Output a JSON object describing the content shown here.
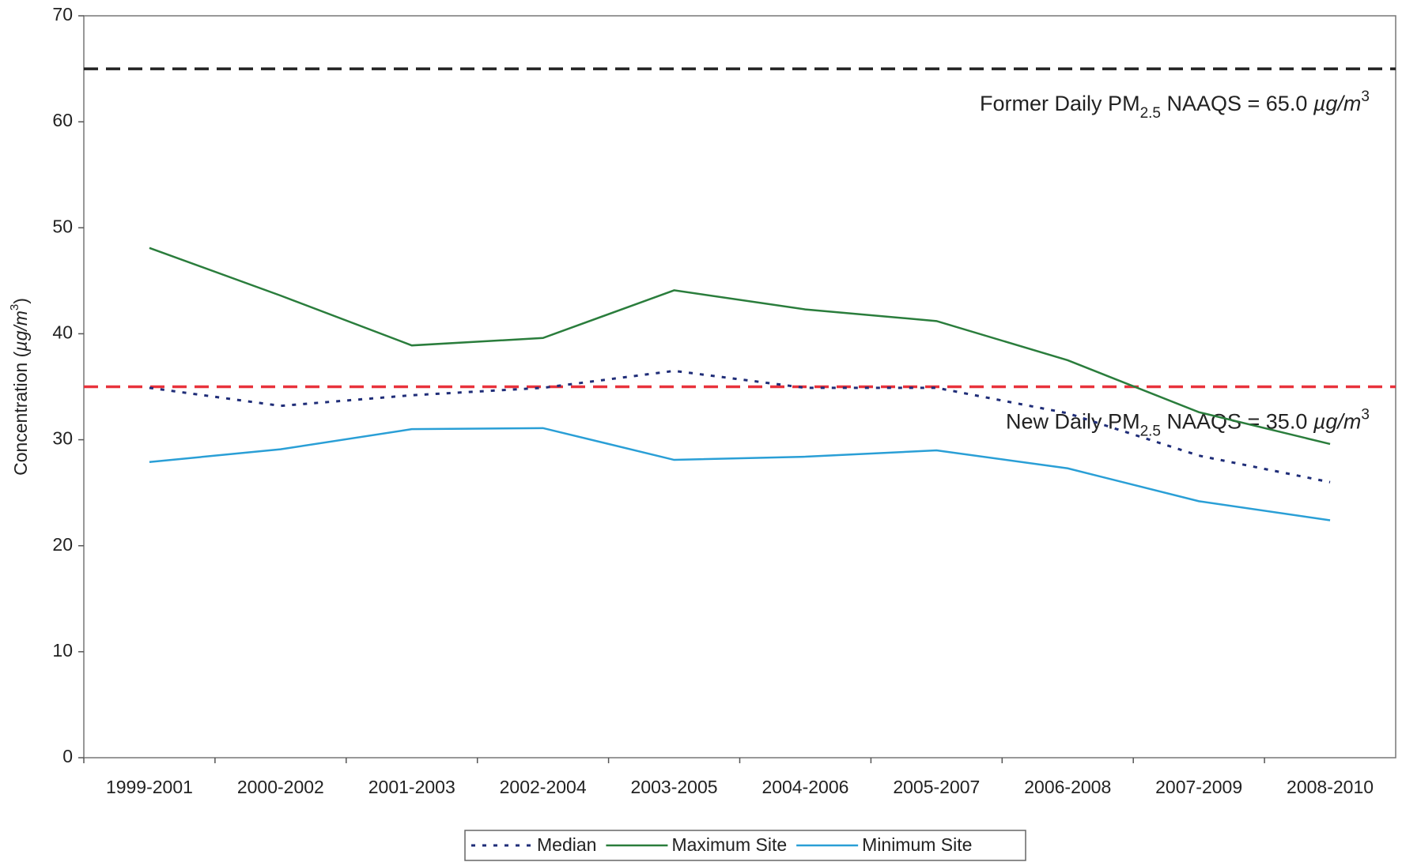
{
  "chart_data": {
    "type": "line",
    "y_label": [
      "Concentration (",
      "µg/m",
      "3",
      ")"
    ],
    "categories": [
      "1999-2001",
      "2000-2002",
      "2001-2003",
      "2002-2004",
      "2003-2005",
      "2004-2006",
      "2005-2007",
      "2006-2008",
      "2007-2009",
      "2008-2010"
    ],
    "series": [
      {
        "name": "Median",
        "color": "#1f2d78",
        "dash": "dotted",
        "values": [
          34.9,
          33.2,
          34.2,
          34.9,
          36.5,
          34.9,
          34.9,
          32.5,
          28.5,
          26.0
        ]
      },
      {
        "name": "Maximum Site",
        "color": "#2a7d3c",
        "dash": "solid",
        "values": [
          48.1,
          43.6,
          38.9,
          39.6,
          44.1,
          42.3,
          41.2,
          37.5,
          32.6,
          29.6
        ]
      },
      {
        "name": "Minimum Site",
        "color": "#2a9fd6",
        "dash": "solid",
        "values": [
          27.9,
          29.1,
          31.0,
          31.1,
          28.1,
          28.4,
          29.0,
          27.3,
          24.2,
          22.4
        ]
      }
    ],
    "reference_lines": [
      {
        "value": 65,
        "color": "#222222",
        "label": [
          "Former Daily PM",
          "2.5",
          " NAAQS = 65.0 ",
          "µg/m",
          "3"
        ]
      },
      {
        "value": 35,
        "color": "#e8323c",
        "label": [
          "New Daily PM",
          "2.5",
          " NAAQS = 35.0 ",
          "µg/m",
          "3"
        ]
      }
    ],
    "ylim": [
      0,
      70
    ],
    "yticks": [
      0,
      10,
      20,
      30,
      40,
      50,
      60,
      70
    ],
    "grid": false,
    "legend": "bottom"
  }
}
